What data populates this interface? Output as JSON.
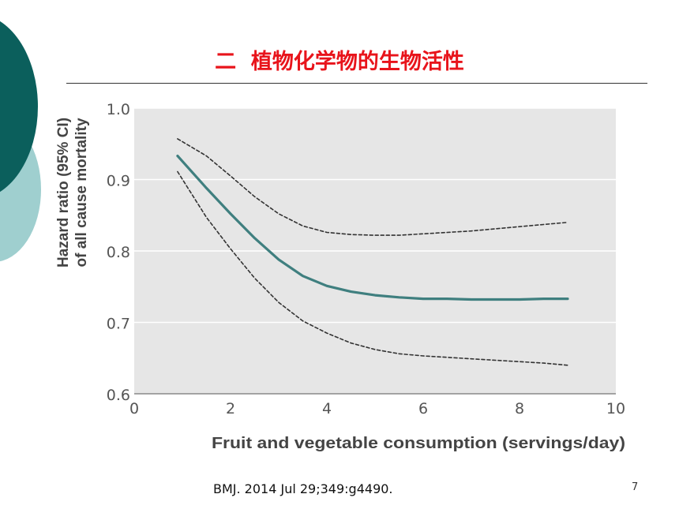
{
  "slide": {
    "title": "二  植物化学物的生物活性",
    "citation": "BMJ. 2014 Jul 29;349:g4490.",
    "page_number": "7"
  },
  "colors": {
    "title": "#e8141b",
    "curve": "#3f7f7f",
    "ci": "#333333",
    "plot_bg": "#e6e6e6",
    "deco_dark": "#0b5f5c",
    "deco_light": "#9fcfcf"
  },
  "chart_data": {
    "type": "line",
    "title": "",
    "xlabel": "Fruit and vegetable consumption (servings/day)",
    "ylabel_lines": [
      "Hazard ratio (95% CI)",
      "of all cause mortality"
    ],
    "xlim": [
      0,
      10
    ],
    "ylim": [
      0.6,
      1.0
    ],
    "x_ticks": [
      0,
      2,
      4,
      6,
      8,
      10
    ],
    "x_tick_labels": [
      "0",
      "2",
      "4",
      "6",
      "8",
      "10"
    ],
    "y_ticks": [
      0.6,
      0.7,
      0.8,
      0.9,
      1.0
    ],
    "y_tick_labels": [
      "0.6",
      "0.7",
      "0.8",
      "0.9",
      "1.0"
    ],
    "grid": "horizontal",
    "legend": "none",
    "series": [
      {
        "role": "estimate",
        "x": [
          0.9,
          1.5,
          2,
          2.5,
          3,
          3.5,
          4,
          4.5,
          5,
          5.5,
          6,
          6.5,
          7,
          7.5,
          8,
          8.5,
          9
        ],
        "y": [
          0.933,
          0.888,
          0.852,
          0.818,
          0.788,
          0.765,
          0.751,
          0.743,
          0.738,
          0.735,
          0.733,
          0.733,
          0.732,
          0.732,
          0.732,
          0.733,
          0.733
        ]
      },
      {
        "role": "upper_ci",
        "x": [
          0.9,
          1.5,
          2,
          2.5,
          3,
          3.5,
          4,
          4.5,
          5,
          5.5,
          6,
          6.5,
          7,
          7.5,
          8,
          8.5,
          9
        ],
        "y": [
          0.957,
          0.933,
          0.905,
          0.876,
          0.852,
          0.835,
          0.826,
          0.823,
          0.822,
          0.822,
          0.824,
          0.826,
          0.828,
          0.831,
          0.834,
          0.837,
          0.84
        ]
      },
      {
        "role": "lower_ci",
        "x": [
          0.9,
          1.5,
          2,
          2.5,
          3,
          3.5,
          4,
          4.5,
          5,
          5.5,
          6,
          6.5,
          7,
          7.5,
          8,
          8.5,
          9
        ],
        "y": [
          0.911,
          0.847,
          0.803,
          0.762,
          0.728,
          0.702,
          0.685,
          0.671,
          0.662,
          0.656,
          0.653,
          0.651,
          0.649,
          0.647,
          0.645,
          0.643,
          0.64
        ]
      }
    ]
  }
}
